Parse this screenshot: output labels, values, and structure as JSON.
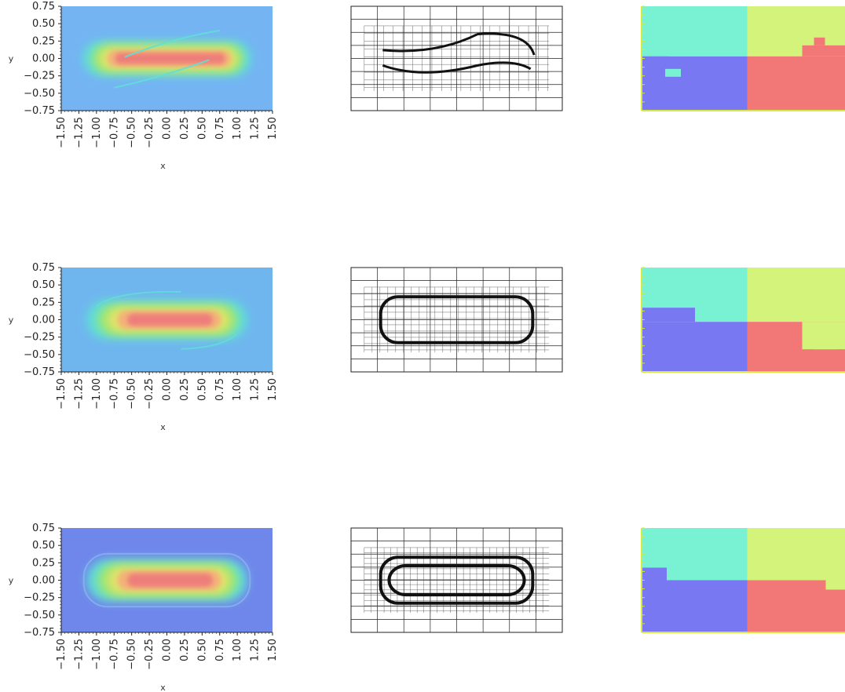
{
  "colors": {
    "heat_bg_row1": "#74b4f2",
    "heat_bg_row2": "#6fb6ee",
    "heat_bg_row3": "#6f87ea",
    "heat_cyan": "#5fe0d6",
    "heat_green": "#9ee86a",
    "heat_yellow": "#e9e16a",
    "heat_orange": "#f3b079",
    "heat_red": "#ee7c7a",
    "part_teal": "#79f2d4",
    "part_yellow": "#d4f37a",
    "part_blue": "#7878f2",
    "part_red": "#f27878"
  },
  "chart_data": [
    {
      "row": 1,
      "type": "heatmap",
      "xlabel": "x",
      "ylabel": "y",
      "xlim": [
        -1.5,
        1.5
      ],
      "ylim": [
        -0.75,
        0.75
      ],
      "xticks": [
        "−1.50",
        "−1.25",
        "−1.00",
        "−0.75",
        "−0.50",
        "−0.25",
        "0.00",
        "0.25",
        "0.50",
        "0.75",
        "1.00",
        "1.25",
        "1.50"
      ],
      "yticks": [
        "0.75",
        "0.50",
        "0.25",
        "0.00",
        "−0.25",
        "−0.50",
        "−0.75"
      ],
      "band": {
        "x_min": -1.1,
        "x_max": 1.1,
        "y_center": 0.0,
        "half_height": 0.2
      },
      "panels": [
        "solution-field",
        "adaptive-mesh",
        "domain-partition"
      ],
      "mesh_level": 1,
      "partition_split_x": 0.0
    },
    {
      "row": 2,
      "type": "heatmap",
      "xlabel": "x",
      "ylabel": "y",
      "xlim": [
        -1.5,
        1.5
      ],
      "ylim": [
        -0.75,
        0.75
      ],
      "xticks": [
        "−1.50",
        "−1.25",
        "−1.00",
        "−0.75",
        "−0.50",
        "−0.25",
        "0.00",
        "0.25",
        "0.50",
        "0.75",
        "1.00",
        "1.25",
        "1.50"
      ],
      "yticks": [
        "0.75",
        "0.50",
        "0.25",
        "0.00",
        "−0.25",
        "−0.50",
        "−0.75"
      ],
      "band": {
        "x_min": -1.05,
        "x_max": 1.05,
        "y_center": 0.0,
        "half_height": 0.22
      },
      "panels": [
        "solution-field",
        "adaptive-mesh",
        "domain-partition"
      ],
      "mesh_level": 2,
      "partition_split_x": 0.0
    },
    {
      "row": 3,
      "type": "heatmap",
      "xlabel": "x",
      "ylabel": "y",
      "xlim": [
        -1.5,
        1.5
      ],
      "ylim": [
        -0.75,
        0.75
      ],
      "xticks": [
        "−1.50",
        "−1.25",
        "−1.00",
        "−0.75",
        "−0.50",
        "−0.25",
        "0.00",
        "0.25",
        "0.50",
        "0.75",
        "1.00",
        "1.25",
        "1.50"
      ],
      "yticks": [
        "0.75",
        "0.50",
        "0.25",
        "0.00",
        "−0.25",
        "−0.50",
        "−0.75"
      ],
      "band": {
        "x_min": -1.05,
        "x_max": 1.05,
        "y_center": 0.0,
        "half_height": 0.24
      },
      "panels": [
        "solution-field",
        "adaptive-mesh",
        "domain-partition"
      ],
      "mesh_level": 3,
      "partition_split_x": 0.0
    }
  ]
}
